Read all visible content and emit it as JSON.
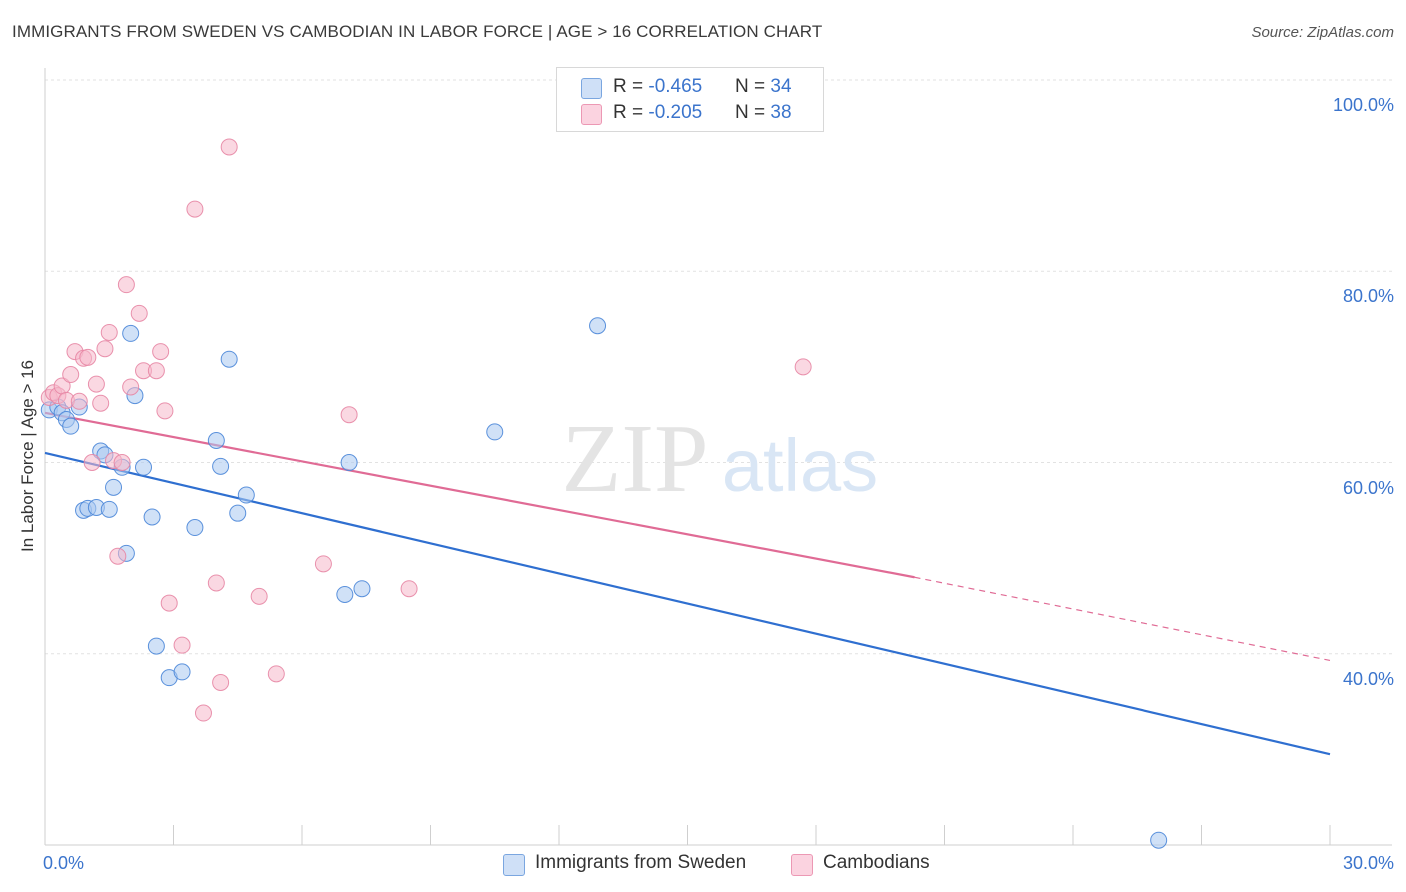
{
  "title": "IMMIGRANTS FROM SWEDEN VS CAMBODIAN IN LABOR FORCE | AGE > 16 CORRELATION CHART",
  "source": "Source: ZipAtlas.com",
  "watermark": {
    "zip": "ZIP",
    "atlas": "atlas"
  },
  "legend_top": [
    {
      "r_label": "R = ",
      "r_value": "-0.465",
      "n_label": "N = ",
      "n_value": "34",
      "color": "#a9c8f0"
    },
    {
      "r_label": "R = ",
      "r_value": "-0.205",
      "n_label": "N = ",
      "n_value": "38",
      "color": "#f5b8cb"
    }
  ],
  "legend_bottom": [
    {
      "label": "Immigrants from Sweden",
      "color": "#a9c8f0"
    },
    {
      "label": "Cambodians",
      "color": "#f5b8cb"
    }
  ],
  "chart_data": {
    "type": "scatter",
    "xlabel": "",
    "ylabel": "In Labor Force | Age > 16",
    "xlim": [
      0,
      30
    ],
    "ylim": [
      20,
      100
    ],
    "x_tick_labels": [
      "0.0%",
      "30.0%"
    ],
    "y_ticks": [
      40,
      60,
      80,
      100
    ],
    "y_tick_labels": [
      "40.0%",
      "60.0%",
      "80.0%",
      "100.0%"
    ],
    "grid": true,
    "legend_position": "top-center",
    "series": [
      {
        "name": "Immigrants from Sweden",
        "color": "#4a86d8",
        "fill": "#a9c8f0",
        "trend_color": "#2f6fd0",
        "trend": {
          "x": [
            0,
            30
          ],
          "y": [
            61.0,
            29.5
          ]
        },
        "points": [
          [
            0.1,
            65.5
          ],
          [
            0.3,
            65.8
          ],
          [
            0.4,
            65.2
          ],
          [
            0.5,
            64.5
          ],
          [
            0.6,
            63.8
          ],
          [
            0.8,
            65.8
          ],
          [
            0.9,
            55.0
          ],
          [
            1.0,
            55.2
          ],
          [
            1.2,
            55.3
          ],
          [
            1.3,
            61.2
          ],
          [
            1.4,
            60.8
          ],
          [
            1.5,
            55.1
          ],
          [
            1.6,
            57.4
          ],
          [
            1.8,
            59.5
          ],
          [
            1.9,
            50.5
          ],
          [
            2.0,
            73.5
          ],
          [
            2.1,
            67.0
          ],
          [
            2.3,
            59.5
          ],
          [
            2.5,
            54.3
          ],
          [
            2.6,
            40.8
          ],
          [
            2.9,
            37.5
          ],
          [
            3.2,
            38.1
          ],
          [
            3.5,
            53.2
          ],
          [
            4.0,
            62.3
          ],
          [
            4.1,
            59.6
          ],
          [
            4.3,
            70.8
          ],
          [
            4.5,
            54.7
          ],
          [
            4.7,
            56.6
          ],
          [
            7.0,
            46.2
          ],
          [
            7.1,
            60.0
          ],
          [
            7.4,
            46.8
          ],
          [
            10.5,
            63.2
          ],
          [
            12.9,
            74.3
          ],
          [
            26.0,
            20.5
          ]
        ]
      },
      {
        "name": "Cambodians",
        "color": "#e786a4",
        "fill": "#f5b8cb",
        "trend_color": "#e06b95",
        "trend": {
          "x": [
            0,
            20.3
          ],
          "y": [
            65.2,
            48.0
          ]
        },
        "trend_dashed": {
          "x": [
            20.3,
            30
          ],
          "y": [
            48.0,
            39.3
          ]
        },
        "points": [
          [
            0.1,
            66.8
          ],
          [
            0.2,
            67.3
          ],
          [
            0.3,
            67.0
          ],
          [
            0.4,
            68.0
          ],
          [
            0.5,
            66.5
          ],
          [
            0.6,
            69.2
          ],
          [
            0.7,
            71.6
          ],
          [
            0.8,
            66.4
          ],
          [
            0.9,
            70.9
          ],
          [
            1.0,
            71.0
          ],
          [
            1.1,
            60.0
          ],
          [
            1.2,
            68.2
          ],
          [
            1.3,
            66.2
          ],
          [
            1.4,
            71.9
          ],
          [
            1.5,
            73.6
          ],
          [
            1.6,
            60.2
          ],
          [
            1.7,
            50.2
          ],
          [
            1.8,
            60.0
          ],
          [
            1.9,
            78.6
          ],
          [
            2.0,
            67.9
          ],
          [
            2.2,
            75.6
          ],
          [
            2.3,
            69.6
          ],
          [
            2.6,
            69.6
          ],
          [
            2.7,
            71.6
          ],
          [
            2.8,
            65.4
          ],
          [
            2.9,
            45.3
          ],
          [
            3.2,
            40.9
          ],
          [
            3.5,
            86.5
          ],
          [
            3.7,
            33.8
          ],
          [
            4.0,
            47.4
          ],
          [
            4.1,
            37.0
          ],
          [
            4.3,
            93.0
          ],
          [
            5.0,
            46.0
          ],
          [
            5.4,
            37.9
          ],
          [
            6.5,
            49.4
          ],
          [
            7.1,
            65.0
          ],
          [
            8.5,
            46.8
          ],
          [
            17.7,
            70.0
          ]
        ]
      }
    ]
  }
}
